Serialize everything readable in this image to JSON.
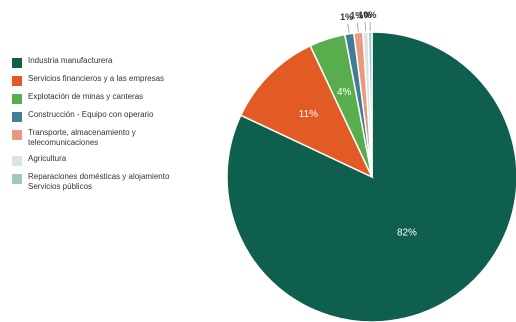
{
  "chart_data": {
    "type": "pie",
    "title": "",
    "legend_position": "left",
    "slices": [
      {
        "label": "Industria manufacturera",
        "value": 82,
        "display": "82%",
        "color": "#0f5f4f",
        "label_placement": "inside"
      },
      {
        "label": "Servicios financieros y a las empresas",
        "value": 11,
        "display": "11%",
        "color": "#e25a24",
        "label_placement": "inside"
      },
      {
        "label": "Explotación de minas y canteras",
        "value": 4,
        "display": "4%",
        "color": "#5aad4c",
        "label_placement": "inside"
      },
      {
        "label": "Construcción - Equipo con operario",
        "value": 1,
        "display": "1%",
        "color": "#3f7e93",
        "label_placement": "outside"
      },
      {
        "label": "Transporte, almacenamiento y\ntelecomunicaciones",
        "value": 1,
        "display": "1%",
        "color": "#e89a80",
        "label_placement": "outside"
      },
      {
        "label": "Agricultura",
        "value": 0.6,
        "display": "1%",
        "color": "#dde3e2",
        "label_placement": "outside"
      },
      {
        "label": "Reparaciones domésticas y alojamiento\nServicios públicos",
        "value": 0.4,
        "display": "0%",
        "color": "#9fc9c0",
        "label_placement": "outside"
      }
    ]
  }
}
